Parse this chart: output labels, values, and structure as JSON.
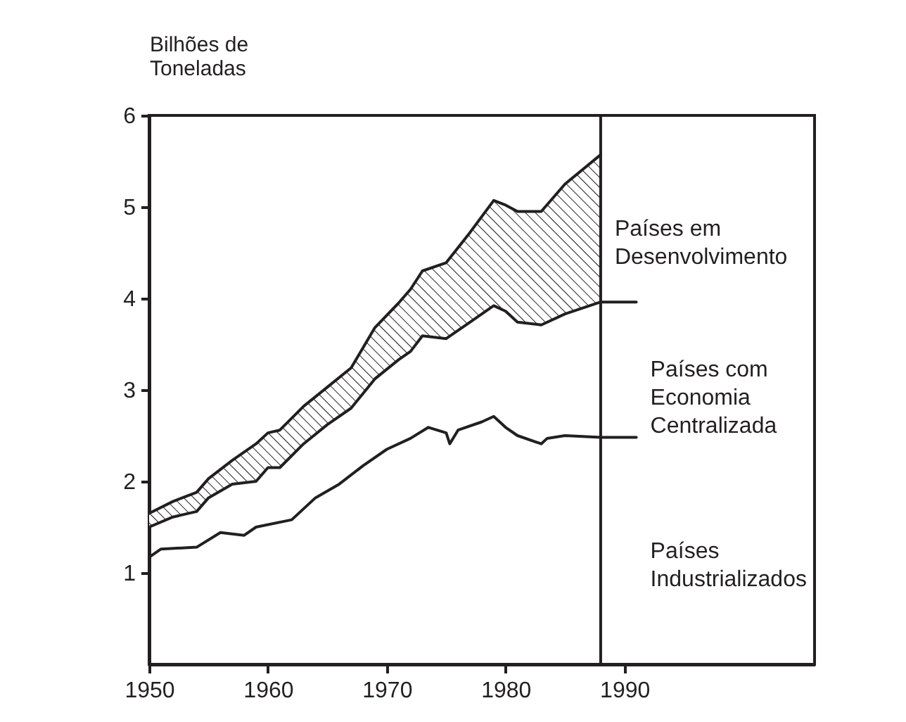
{
  "chart_data": {
    "type": "line",
    "ylabel": "Bilhões de Toneladas",
    "xlim": [
      1950,
      2006
    ],
    "xticks": [
      1950,
      1960,
      1970,
      1980,
      1990
    ],
    "ylim": [
      0,
      6
    ],
    "yticks": [
      1,
      2,
      3,
      4,
      5,
      6
    ],
    "grid": false,
    "legend": false,
    "ref_lines": [
      {
        "axis": "x",
        "value": 1988,
        "color": "#231f20"
      }
    ],
    "series": [
      {
        "name": "Países Industrializados",
        "color": "#231f20",
        "x": [
          1950,
          1951,
          1954,
          1956,
          1958,
          1959,
          1962,
          1964,
          1966,
          1968,
          1970,
          1972,
          1973.5,
          1975,
          1975.3,
          1976,
          1978,
          1979,
          1980,
          1981,
          1983,
          1983.5,
          1985,
          1988,
          1991
        ],
        "values": [
          1.17,
          1.26,
          1.28,
          1.44,
          1.41,
          1.5,
          1.58,
          1.82,
          1.97,
          2.17,
          2.35,
          2.47,
          2.59,
          2.53,
          2.41,
          2.56,
          2.65,
          2.71,
          2.59,
          2.5,
          2.41,
          2.47,
          2.5,
          2.48,
          2.48
        ]
      },
      {
        "name": "Países com Economia Centralizada",
        "color": "#231f20",
        "x": [
          1950,
          1952,
          1954,
          1955,
          1957,
          1959,
          1960,
          1961,
          1963,
          1965,
          1967,
          1969,
          1971,
          1972,
          1973,
          1975,
          1977,
          1979,
          1980,
          1981,
          1983,
          1985,
          1988,
          1991
        ],
        "values": [
          1.5,
          1.61,
          1.67,
          1.82,
          1.97,
          2.0,
          2.15,
          2.15,
          2.41,
          2.62,
          2.8,
          3.12,
          3.33,
          3.42,
          3.59,
          3.56,
          3.74,
          3.92,
          3.86,
          3.74,
          3.71,
          3.83,
          3.96,
          3.96
        ]
      },
      {
        "name": "Países em Desenvolvimento",
        "color": "#231f20",
        "x": [
          1950,
          1952,
          1954,
          1955,
          1957,
          1959,
          1960,
          1961,
          1963,
          1965,
          1967,
          1969,
          1971,
          1972,
          1973,
          1975,
          1977,
          1979,
          1980,
          1981,
          1983,
          1985,
          1988
        ],
        "values": [
          1.65,
          1.78,
          1.88,
          2.03,
          2.23,
          2.41,
          2.53,
          2.56,
          2.82,
          3.03,
          3.24,
          3.68,
          3.95,
          4.1,
          4.3,
          4.39,
          4.72,
          5.07,
          5.02,
          4.95,
          4.95,
          5.25,
          5.57
        ],
        "lower": [
          1.5,
          1.61,
          1.67,
          1.82,
          1.97,
          2.0,
          2.15,
          2.15,
          2.41,
          2.62,
          2.8,
          3.12,
          3.33,
          3.42,
          3.59,
          3.56,
          3.74,
          3.92,
          3.86,
          3.74,
          3.71,
          3.83,
          3.96
        ],
        "upper": [
          1.65,
          1.78,
          1.88,
          2.03,
          2.23,
          2.41,
          2.53,
          2.56,
          2.82,
          3.03,
          3.24,
          3.68,
          3.95,
          4.1,
          4.3,
          4.39,
          4.72,
          5.07,
          5.02,
          4.95,
          4.95,
          5.25,
          5.57
        ]
      }
    ]
  }
}
